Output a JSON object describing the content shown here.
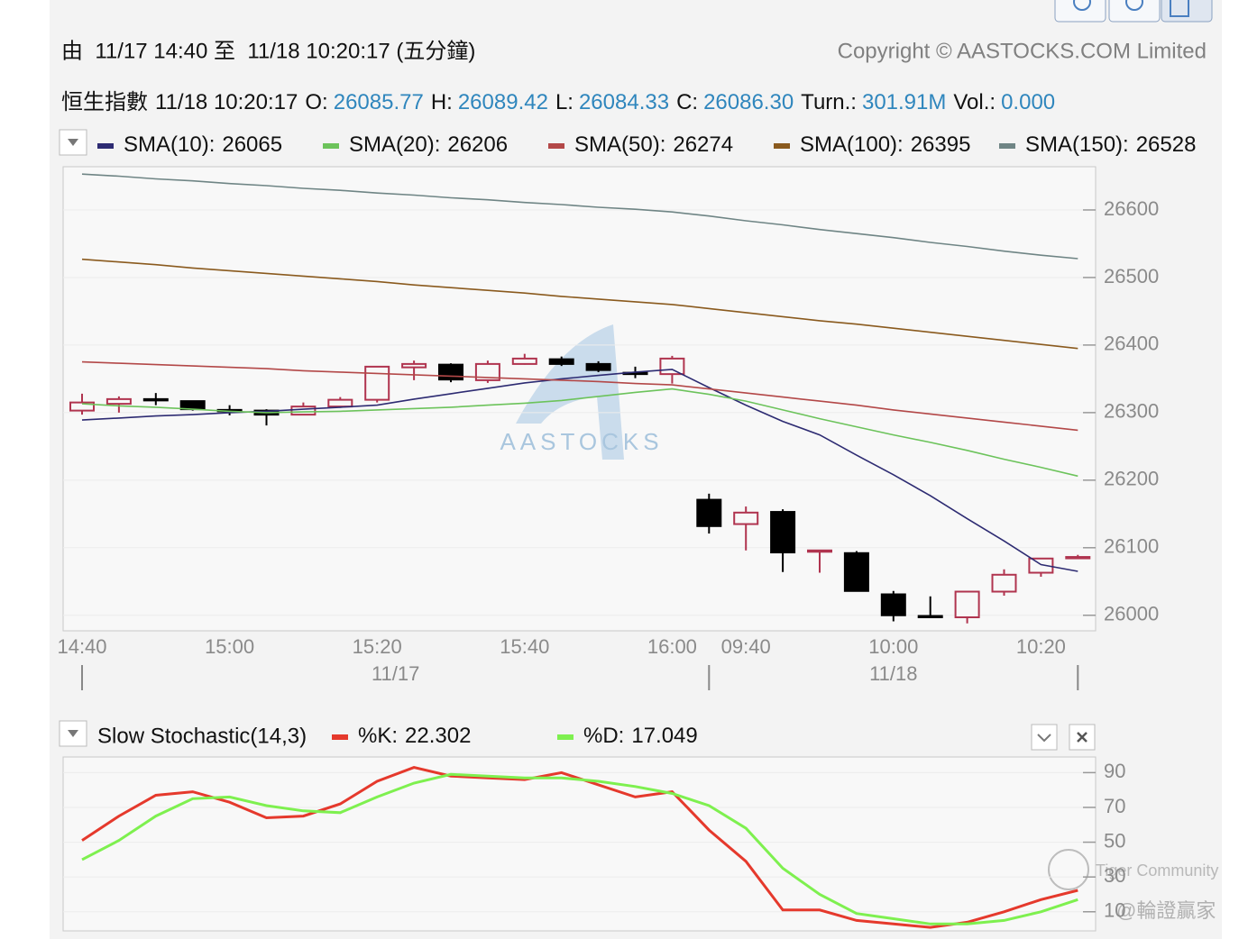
{
  "header": {
    "range": "由  11/17 14:40 至  11/18 10:20:17 (五分鐘)",
    "copyright": "Copyright © AASTOCKS.COM Limited"
  },
  "quote": {
    "name": "恒生指數",
    "time": "11/18 10:20:17",
    "fields": [
      {
        "label": "O:",
        "value": "26085.77"
      },
      {
        "label": "H:",
        "value": "26089.42"
      },
      {
        "label": "L:",
        "value": "26084.33"
      },
      {
        "label": "C:",
        "value": "26086.30"
      },
      {
        "label": "Turn.:",
        "value": "301.91M"
      },
      {
        "label": "Vol.:",
        "value": "0.000"
      }
    ]
  },
  "watermarks": {
    "logo": "AASTOCKS",
    "community": "Tiger Community",
    "author": "@輪證贏家"
  },
  "chart_data": [
    {
      "type": "candlestick",
      "categories": [
        "14:40",
        null,
        null,
        null,
        "15:00",
        null,
        null,
        null,
        "15:20",
        null,
        null,
        null,
        "15:40",
        null,
        null,
        null,
        "16:00",
        null,
        "09:40",
        null,
        null,
        null,
        "10:00",
        null,
        null,
        null,
        "10:20",
        null
      ],
      "dates": [
        "11/17",
        "11/18"
      ],
      "open": [
        26303,
        26313,
        26320,
        26317,
        26304,
        26303,
        26297,
        26309,
        26319,
        26367,
        26371,
        26348,
        26372,
        26379,
        26372,
        26359,
        26357,
        26171,
        26135,
        26153,
        26095,
        26092,
        26031,
        25999,
        25997,
        26035,
        26063,
        26085.77
      ],
      "high": [
        26328,
        26324,
        26329,
        26317,
        26311,
        26305,
        26315,
        26323,
        26368,
        26377,
        26373,
        26377,
        26387,
        26383,
        26376,
        26368,
        26384,
        26180,
        26161,
        26157,
        26096,
        26095,
        26036,
        26028,
        26035,
        26068,
        26084,
        26089.42
      ],
      "low": [
        26297,
        26300,
        26311,
        26303,
        26296,
        26281,
        26297,
        26307,
        26315,
        26348,
        26345,
        26344,
        26371,
        26369,
        26360,
        26351,
        26343,
        26121,
        26096,
        26064,
        26063,
        26036,
        25991,
        25996,
        25988,
        26029,
        26057,
        26084.33
      ],
      "close": [
        26315,
        26320,
        26320,
        26305,
        26304,
        26297,
        26309,
        26319,
        26368,
        26372,
        26349,
        26372,
        26380,
        26372,
        26363,
        26359,
        26380,
        26132,
        26152,
        26093,
        26096,
        26036,
        26000,
        25999,
        26035,
        26060,
        26084,
        26086.3
      ],
      "up_color": "#b0344f",
      "down_color": "#000000",
      "series": [
        {
          "name": "SMA(10):",
          "last": 26065,
          "color": "#2d2b72",
          "values": [
            26289,
            26292,
            26295,
            26297,
            26300,
            26302,
            26305,
            26308,
            26311,
            26320,
            26328,
            26336,
            26344,
            26350,
            26355,
            26360,
            26364,
            26337,
            26311,
            26287,
            26267,
            26237,
            26208,
            26177,
            26143,
            26110,
            26075,
            26065
          ]
        },
        {
          "name": "SMA(20):",
          "last": 26206,
          "color": "#6cc35b",
          "values": [
            26313,
            26310,
            26308,
            26305,
            26302,
            26300,
            26301,
            26302,
            26304,
            26306,
            26308,
            26311,
            26314,
            26318,
            26324,
            26330,
            26335,
            26327,
            26317,
            26304,
            26291,
            26279,
            26267,
            26256,
            26244,
            26231,
            26219,
            26206
          ]
        },
        {
          "name": "SMA(50):",
          "last": 26274,
          "color": "#b34848",
          "values": [
            26375,
            26373,
            26371,
            26369,
            26367,
            26365,
            26362,
            26360,
            26358,
            26356,
            26354,
            26352,
            26350,
            26348,
            26346,
            26343,
            26341,
            26335,
            26329,
            26323,
            26317,
            26311,
            26304,
            26298,
            26292,
            26286,
            26280,
            26274
          ]
        },
        {
          "name": "SMA(100):",
          "last": 26395,
          "color": "#8a5a1e",
          "values": [
            26527,
            26523,
            26519,
            26514,
            26510,
            26506,
            26502,
            26498,
            26494,
            26489,
            26485,
            26481,
            26477,
            26472,
            26468,
            26464,
            26460,
            26454,
            26448,
            26442,
            26436,
            26431,
            26425,
            26419,
            26413,
            26407,
            26401,
            26395
          ]
        },
        {
          "name": "SMA(150):",
          "last": 26528,
          "color": "#6f8585",
          "values": [
            26653,
            26650,
            26646,
            26643,
            26639,
            26636,
            26632,
            26629,
            26625,
            26622,
            26618,
            26615,
            26611,
            26608,
            26604,
            26601,
            26597,
            26591,
            26584,
            26578,
            26571,
            26565,
            26559,
            26552,
            26546,
            26539,
            26533,
            26528
          ]
        }
      ],
      "ylim": [
        25977,
        26664
      ],
      "yticks": [
        26000,
        26100,
        26200,
        26300,
        26400,
        26500,
        26600
      ],
      "grid": true
    },
    {
      "type": "line",
      "title": "Slow Stochastic(14,3)",
      "series": [
        {
          "name": "%K:",
          "last": 22.302,
          "color": "#e5392c",
          "values": [
            51,
            65,
            77,
            79,
            73,
            64,
            65,
            72,
            85,
            93,
            88,
            87,
            86,
            90,
            83,
            76,
            79,
            57,
            39,
            11,
            11,
            5,
            3,
            1,
            4,
            10,
            17,
            22.3
          ]
        },
        {
          "name": "%D:",
          "last": 17.049,
          "color": "#7ef04f",
          "values": [
            40,
            51,
            65,
            75,
            76,
            71,
            68,
            67,
            76,
            84,
            89,
            88,
            87,
            87,
            85,
            82,
            78,
            71,
            58,
            35,
            20,
            9,
            6,
            3,
            3,
            5,
            10,
            17
          ]
        }
      ],
      "ylim": [
        -1,
        99
      ],
      "yticks": [
        10,
        30,
        50,
        70,
        90
      ],
      "grid": true
    }
  ]
}
